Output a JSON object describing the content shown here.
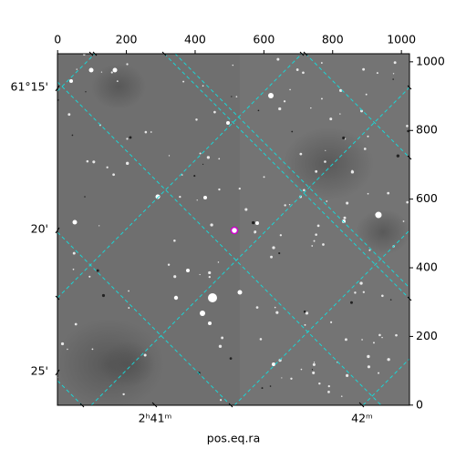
{
  "chart_data": {
    "type": "image",
    "xlabel": "pos.eq.ra",
    "xlim": [
      -0.5,
      1023.5
    ],
    "ylim": [
      -0.5,
      1023.5
    ],
    "xticks": [
      0,
      200,
      400,
      600,
      800,
      1000
    ],
    "yticks": [
      0,
      200,
      400,
      600,
      800,
      1000
    ],
    "ra_labels": [
      "2ʰ41ᵐ",
      "42ᵐ"
    ],
    "dec_labels": [
      "61°15'",
      "20'",
      "25'"
    ],
    "grid_color": "#1ad6d6",
    "marker_color": "#cc00cc"
  }
}
